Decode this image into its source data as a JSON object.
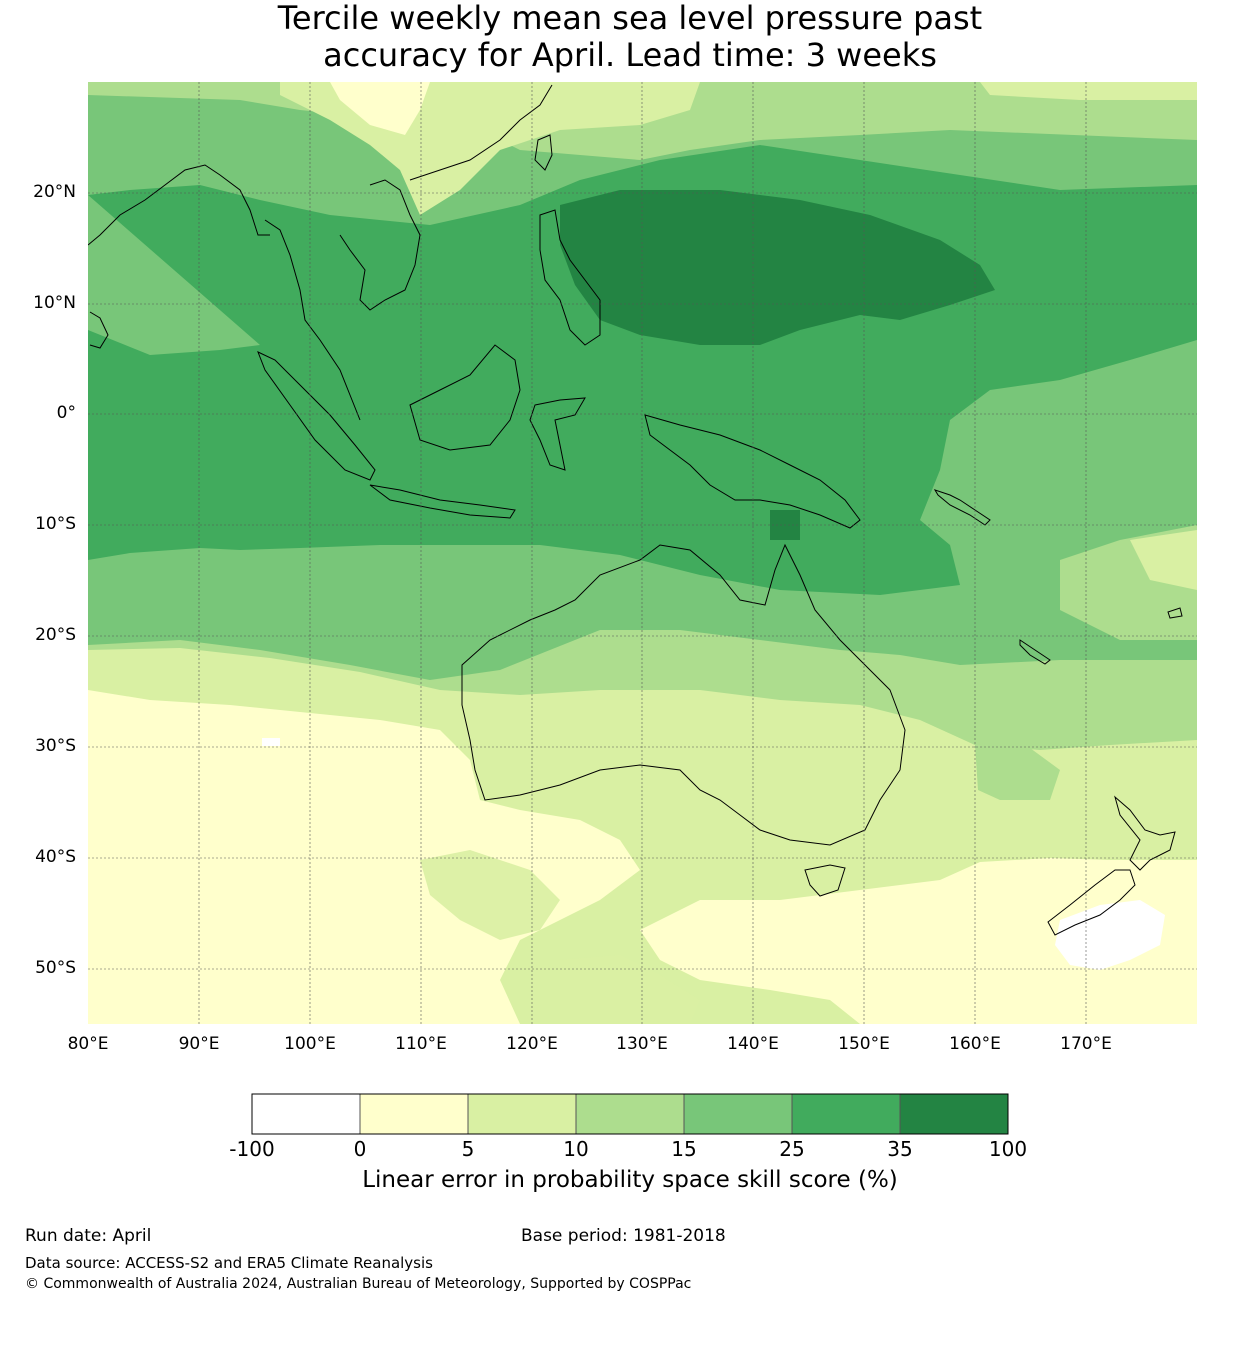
{
  "title_line1": "Tercile weekly mean sea level pressure past",
  "title_line2": "accuracy for April. Lead time: 3 weeks",
  "map": {
    "lon_range": [
      80,
      180
    ],
    "lat_range": [
      -55,
      30
    ],
    "lat_labels": [
      "20°N",
      "10°N",
      "0°",
      "10°S",
      "20°S",
      "30°S",
      "40°S",
      "50°S"
    ],
    "lat_values": [
      20,
      10,
      0,
      -10,
      -20,
      -30,
      -40,
      -50
    ],
    "lon_labels": [
      "80°E",
      "90°E",
      "100°E",
      "110°E",
      "120°E",
      "130°E",
      "140°E",
      "150°E",
      "160°E",
      "170°E"
    ],
    "lon_values": [
      80,
      90,
      100,
      110,
      120,
      130,
      140,
      150,
      160,
      170
    ],
    "grid_lines": true
  },
  "colorbar": {
    "ticks": [
      "-100",
      "0",
      "5",
      "10",
      "15",
      "25",
      "35",
      "100"
    ],
    "colors": [
      "#ffffff",
      "#ffffcc",
      "#d9f0a3",
      "#addd8e",
      "#78c679",
      "#41ab5d",
      "#238443"
    ],
    "title": "Linear error in probability space skill score (%)"
  },
  "footer": {
    "run_date": "Run date: April",
    "base_period": "Base period: 1981-2018",
    "data_source": "Data source: ACCESS-S2 and ERA5 Climate Reanalysis",
    "copyright": "© Commonwealth of Australia 2024, Australian Bureau of Meteorology, Supported by COSPPac"
  }
}
